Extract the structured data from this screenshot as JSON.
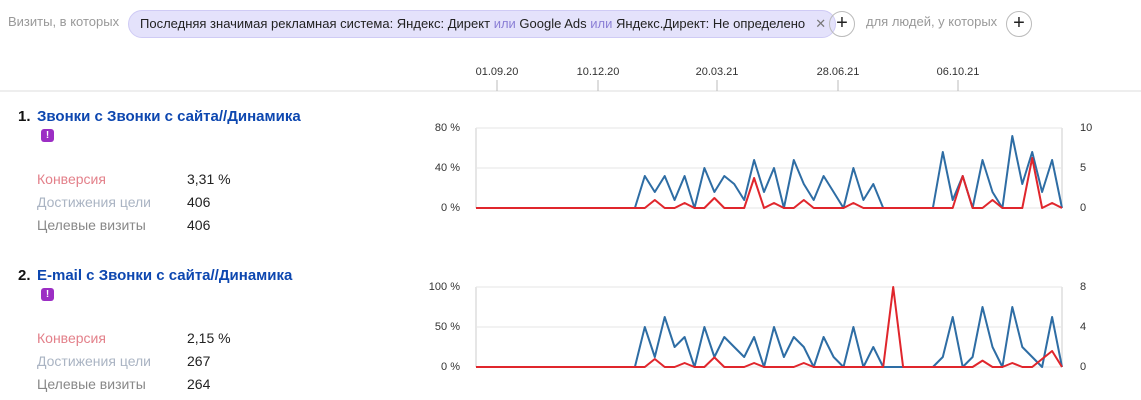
{
  "filter": {
    "prefix": "Визиты, в которых",
    "chip": [
      "Последняя значимая рекламная система: Яндекс: Директ",
      "или",
      "Google Ads",
      "или",
      "Яндекс.Директ: Не определено"
    ],
    "middle": "для людей, у которых"
  },
  "timeline": {
    "labels": [
      "01.09.20",
      "10.12.20",
      "20.03.21",
      "28.06.21",
      "06.10.21"
    ],
    "highlighted": 2,
    "highlight_color": "#c00000"
  },
  "goals": [
    {
      "number": "1.",
      "title": "Звонки с Звонки с сайта//Динамика",
      "metrics": [
        {
          "label": "Конверсия",
          "value": "3,31 %"
        },
        {
          "label": "Достижения цели",
          "value": "406"
        },
        {
          "label": "Целевые визиты",
          "value": "406"
        }
      ],
      "chart": {
        "type": "line",
        "ylim": [
          0,
          80
        ],
        "yticks": [
          {
            "value": 0,
            "label": "0 %"
          },
          {
            "value": 40,
            "label": "40 %"
          },
          {
            "value": 80,
            "label": "80 %"
          }
        ],
        "y2lim": [
          0,
          10
        ],
        "y2ticks": [
          0,
          5,
          10
        ],
        "series": [
          {
            "color": "#2e6da4",
            "axis": "y2",
            "values": [
              0,
              0,
              0,
              0,
              0,
              0,
              0,
              0,
              0,
              0,
              0,
              0,
              0,
              0,
              0,
              0,
              0,
              4,
              2,
              4,
              1,
              4,
              0,
              5,
              2,
              4,
              3,
              1,
              6,
              2,
              5,
              0,
              6,
              3,
              1,
              4,
              2,
              0,
              5,
              1,
              3,
              0,
              0,
              0,
              0,
              0,
              0,
              7,
              1,
              4,
              0,
              6,
              2,
              0,
              9,
              3,
              7,
              2,
              6,
              0
            ]
          },
          {
            "color": "#e0262c",
            "values": [
              0,
              0,
              0,
              0,
              0,
              0,
              0,
              0,
              0,
              0,
              0,
              0,
              0,
              0,
              0,
              0,
              0,
              0,
              8,
              0,
              0,
              5,
              0,
              0,
              10,
              0,
              0,
              0,
              30,
              0,
              5,
              0,
              0,
              8,
              0,
              0,
              0,
              0,
              5,
              0,
              0,
              0,
              0,
              0,
              0,
              0,
              0,
              0,
              0,
              32,
              0,
              0,
              8,
              0,
              0,
              0,
              50,
              0,
              5,
              0
            ]
          }
        ]
      }
    },
    {
      "number": "2.",
      "title": "E-mail с Звонки с сайта//Динамика",
      "metrics": [
        {
          "label": "Конверсия",
          "value": "2,15 %"
        },
        {
          "label": "Достижения цели",
          "value": "267"
        },
        {
          "label": "Целевые визиты",
          "value": "264"
        }
      ],
      "chart": {
        "type": "line",
        "ylim": [
          0,
          100
        ],
        "yticks": [
          {
            "value": 0,
            "label": "0 %"
          },
          {
            "value": 50,
            "label": "50 %"
          },
          {
            "value": 100,
            "label": "100 %"
          }
        ],
        "y2lim": [
          0,
          8
        ],
        "y2ticks": [
          0,
          4,
          8
        ],
        "series": [
          {
            "color": "#2e6da4",
            "axis": "y2",
            "values": [
              0,
              0,
              0,
              0,
              0,
              0,
              0,
              0,
              0,
              0,
              0,
              0,
              0,
              0,
              0,
              0,
              0,
              4,
              1,
              5,
              2,
              3,
              0,
              4,
              1,
              3,
              2,
              1,
              3,
              0,
              4,
              1,
              3,
              2,
              0,
              3,
              1,
              0,
              4,
              0,
              2,
              0,
              0,
              0,
              0,
              0,
              0,
              1,
              5,
              0,
              1,
              6,
              2,
              0,
              6,
              2,
              1,
              0,
              5,
              0
            ]
          },
          {
            "color": "#e0262c",
            "values": [
              0,
              0,
              0,
              0,
              0,
              0,
              0,
              0,
              0,
              0,
              0,
              0,
              0,
              0,
              0,
              0,
              0,
              0,
              10,
              0,
              0,
              5,
              0,
              0,
              12,
              0,
              0,
              0,
              5,
              0,
              0,
              0,
              0,
              5,
              0,
              0,
              0,
              0,
              0,
              0,
              0,
              0,
              100,
              0,
              0,
              0,
              0,
              0,
              0,
              0,
              0,
              8,
              0,
              0,
              5,
              0,
              0,
              10,
              20,
              0
            ]
          }
        ]
      }
    }
  ]
}
